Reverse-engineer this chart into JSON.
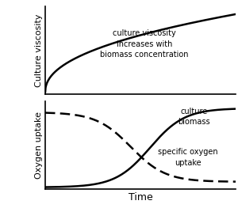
{
  "top_annotation": "culture viscosity\nincreases with\nbiomass concentration",
  "bottom_annotation_1": "culture\nbiomass",
  "bottom_annotation_2": "specific oxygen\nuptake",
  "xlabel": "Time",
  "ylabel_top": "Culture viscosity",
  "ylabel_bottom": "Oxygen uptake",
  "line_color": "#000000",
  "background_color": "#ffffff",
  "annotation_fontsize": 7.0,
  "axis_label_fontsize": 8.0,
  "xlabel_fontsize": 9.0
}
